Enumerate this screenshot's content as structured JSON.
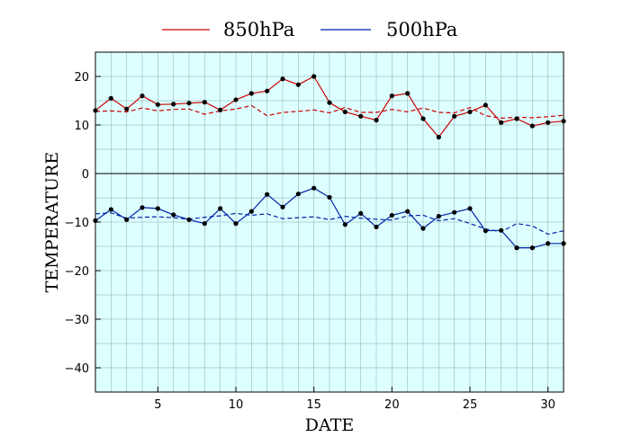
{
  "chart_data": {
    "type": "line",
    "xlabel": "DATE",
    "ylabel": "TEMPERATURE",
    "xlim": [
      1,
      31
    ],
    "ylim": [
      -45,
      25
    ],
    "xticks": [
      5,
      10,
      15,
      20,
      25,
      30
    ],
    "yticks": [
      20,
      10,
      0,
      -10,
      -20,
      -30,
      -40
    ],
    "grid": true,
    "legend_position": "top",
    "background_color": "#ddffff",
    "series": [
      {
        "name": "850hPa",
        "color": "#cc0000",
        "x": [
          1,
          2,
          3,
          4,
          5,
          6,
          7,
          8,
          9,
          10,
          11,
          12,
          13,
          14,
          15,
          16,
          17,
          18,
          19,
          20,
          21,
          22,
          23,
          24,
          25,
          26,
          27,
          28,
          29,
          30,
          31
        ],
        "values": [
          13.0,
          15.5,
          13.3,
          16.0,
          14.2,
          14.3,
          14.5,
          14.7,
          13.1,
          15.2,
          16.5,
          17.0,
          19.5,
          18.3,
          20.0,
          14.6,
          12.7,
          11.8,
          11.0,
          16.0,
          16.5,
          11.3,
          7.5,
          11.8,
          12.7,
          14.1,
          10.5,
          11.3,
          9.8,
          10.5,
          10.8
        ]
      },
      {
        "name": "500hPa",
        "color": "#0022aa",
        "x": [
          1,
          2,
          3,
          4,
          5,
          6,
          7,
          8,
          9,
          10,
          11,
          12,
          13,
          14,
          15,
          16,
          17,
          18,
          19,
          20,
          21,
          22,
          23,
          24,
          25,
          26,
          27,
          28,
          29,
          30,
          31
        ],
        "values": [
          -9.7,
          -7.4,
          -9.5,
          -7.0,
          -7.2,
          -8.5,
          -9.5,
          -10.3,
          -7.2,
          -10.3,
          -7.8,
          -4.3,
          -6.9,
          -4.2,
          -3.0,
          -4.9,
          -10.5,
          -8.2,
          -11.0,
          -8.6,
          -7.8,
          -11.3,
          -8.8,
          -8.0,
          -7.2,
          -11.8,
          -11.7,
          -15.3,
          -15.3,
          -14.4,
          -14.4
        ]
      },
      {
        "color": "#cc0000",
        "dashed": true,
        "x": [
          1,
          2,
          3,
          4,
          5,
          6,
          7,
          8,
          9,
          10,
          11,
          12,
          13,
          14,
          15,
          16,
          17,
          18,
          19,
          20,
          21,
          22,
          23,
          24,
          25,
          26,
          27,
          28,
          29,
          30,
          31
        ],
        "values": [
          12.8,
          12.9,
          12.7,
          13.5,
          12.9,
          13.2,
          13.3,
          12.2,
          12.9,
          13.3,
          14.0,
          11.9,
          12.6,
          12.8,
          13.1,
          12.5,
          13.6,
          12.6,
          12.6,
          13.2,
          12.7,
          13.5,
          12.6,
          12.5,
          13.6,
          11.9,
          11.4,
          11.6,
          11.5,
          11.7,
          12.0
        ]
      },
      {
        "color": "#0022aa",
        "dashed": true,
        "x": [
          1,
          2,
          3,
          4,
          5,
          6,
          7,
          8,
          9,
          10,
          11,
          12,
          13,
          14,
          15,
          16,
          17,
          18,
          19,
          20,
          21,
          22,
          23,
          24,
          25,
          26,
          27,
          28,
          29,
          30,
          31
        ],
        "values": [
          -8.3,
          -8.1,
          -9.2,
          -9.0,
          -8.9,
          -9.1,
          -9.4,
          -9.0,
          -8.7,
          -8.2,
          -8.6,
          -8.3,
          -9.3,
          -9.1,
          -8.9,
          -9.5,
          -8.8,
          -9.2,
          -9.4,
          -9.6,
          -8.7,
          -8.6,
          -9.7,
          -9.3,
          -10.3,
          -11.4,
          -12.0,
          -10.3,
          -10.8,
          -12.5,
          -11.8
        ]
      }
    ]
  }
}
